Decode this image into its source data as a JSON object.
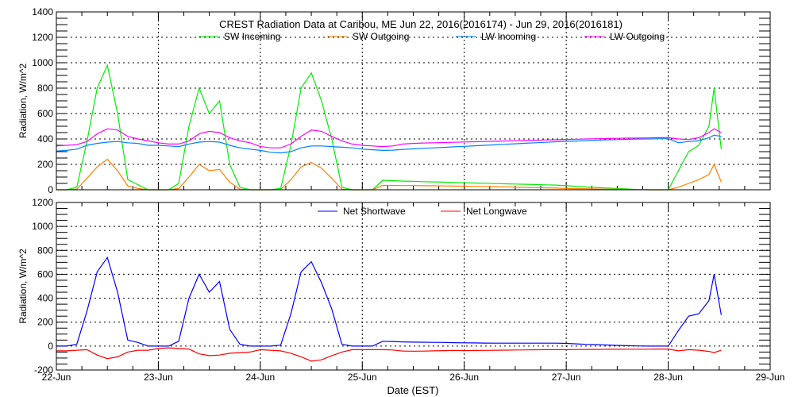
{
  "title": "CREST Radiation Data at Caribou, ME   Jun 22, 2016(2016174) - Jun 29, 2016(2016181)",
  "xlabel": "Date (EST)",
  "chart_data": [
    {
      "type": "line",
      "title": "CREST Radiation Data at Caribou, ME   Jun 22, 2016(2016174) - Jun 29, 2016(2016181)",
      "xlabel": "",
      "ylabel": "Radiation, W/m^2",
      "xlim": [
        0,
        7
      ],
      "ylim": [
        0,
        1400
      ],
      "yticks": [
        0,
        200,
        400,
        600,
        800,
        1000,
        1200,
        1400
      ],
      "grid": true,
      "legend": "top",
      "x_days": [
        0,
        0.1,
        0.2,
        0.3,
        0.4,
        0.5,
        0.6,
        0.7,
        0.8,
        0.9,
        1.0,
        1.1,
        1.2,
        1.3,
        1.4,
        1.5,
        1.6,
        1.7,
        1.8,
        1.9,
        2.0,
        2.1,
        2.2,
        2.3,
        2.4,
        2.5,
        2.6,
        2.7,
        2.8,
        2.9,
        3.0,
        3.1,
        3.2,
        3.3,
        3.4,
        3.5,
        3.6,
        3.7,
        3.8,
        3.9,
        4.0,
        4.1,
        4.2,
        4.3,
        4.4,
        4.5,
        4.6,
        4.7,
        4.8,
        4.9,
        5.0,
        5.1,
        5.2,
        5.3,
        5.4,
        5.5,
        5.6,
        5.7,
        5.8,
        5.9,
        6.0,
        6.1,
        6.2,
        6.3,
        6.4,
        6.45,
        6.52
      ],
      "series": [
        {
          "name": "SW Incoming",
          "color": "#00ee00",
          "values": [
            0,
            0,
            20,
            380,
            800,
            980,
            600,
            80,
            40,
            0,
            0,
            0,
            50,
            500,
            800,
            600,
            700,
            200,
            20,
            0,
            0,
            0,
            10,
            350,
            800,
            920,
            700,
            400,
            20,
            0,
            0,
            0,
            75,
            72,
            68,
            66,
            64,
            62,
            60,
            57,
            55,
            53,
            51,
            49,
            47,
            45,
            43,
            41,
            39,
            37,
            32,
            27,
            22,
            18,
            14,
            10,
            6,
            2,
            0,
            0,
            0,
            150,
            300,
            350,
            500,
            800,
            320
          ]
        },
        {
          "name": "SW Outgoing",
          "color": "#ff7f00",
          "values": [
            0,
            0,
            5,
            90,
            180,
            240,
            150,
            30,
            10,
            0,
            0,
            0,
            10,
            100,
            200,
            150,
            160,
            60,
            5,
            0,
            0,
            0,
            2,
            80,
            180,
            215,
            170,
            90,
            5,
            0,
            0,
            0,
            35,
            34,
            33,
            33,
            32,
            31,
            30,
            29,
            28,
            27,
            26,
            25,
            23,
            21,
            19,
            17,
            15,
            13,
            10,
            9,
            8,
            6,
            5,
            4,
            3,
            1,
            0,
            0,
            0,
            20,
            50,
            80,
            120,
            200,
            60
          ]
        },
        {
          "name": "LW Incoming",
          "color": "#0080ff",
          "values": [
            305,
            310,
            320,
            350,
            365,
            375,
            380,
            370,
            365,
            350,
            350,
            345,
            340,
            360,
            375,
            380,
            375,
            350,
            330,
            320,
            310,
            295,
            290,
            300,
            330,
            345,
            345,
            340,
            335,
            330,
            320,
            315,
            310,
            312,
            318,
            322,
            326,
            330,
            334,
            338,
            342,
            346,
            350,
            354,
            358,
            362,
            366,
            370,
            374,
            378,
            381,
            384,
            387,
            390,
            393,
            395,
            397,
            399,
            400,
            402,
            402,
            370,
            380,
            385,
            410,
            430,
            420
          ]
        },
        {
          "name": "LW Outgoing",
          "color": "#ff00ff",
          "values": [
            345,
            350,
            355,
            380,
            440,
            480,
            470,
            420,
            400,
            385,
            370,
            360,
            360,
            385,
            440,
            460,
            450,
            410,
            385,
            370,
            340,
            330,
            330,
            360,
            420,
            470,
            460,
            420,
            385,
            360,
            350,
            345,
            340,
            345,
            360,
            365,
            368,
            370,
            372,
            374,
            376,
            378,
            380,
            382,
            384,
            386,
            388,
            390,
            392,
            394,
            396,
            398,
            400,
            402,
            404,
            405,
            406,
            407,
            408,
            410,
            410,
            400,
            395,
            410,
            450,
            480,
            450
          ]
        }
      ]
    },
    {
      "type": "line",
      "xlabel": "Date (EST)",
      "ylabel": "Radiation, W/m^2",
      "xlim": [
        0,
        7
      ],
      "ylim": [
        -200,
        1200
      ],
      "yticks": [
        -200,
        0,
        200,
        400,
        600,
        800,
        1000,
        1200
      ],
      "xticks": [
        "22-Jun",
        "23-Jun",
        "24-Jun",
        "25-Jun",
        "26-Jun",
        "27-Jun",
        "28-Jun",
        "29-Jun"
      ],
      "grid": true,
      "legend": "top",
      "series": [
        {
          "name": "Net Shortwave",
          "color": "#0000ff",
          "values": [
            0,
            0,
            15,
            290,
            620,
            740,
            450,
            50,
            30,
            0,
            0,
            0,
            40,
            400,
            600,
            450,
            540,
            140,
            15,
            0,
            0,
            0,
            8,
            270,
            620,
            705,
            530,
            310,
            15,
            0,
            0,
            0,
            40,
            38,
            35,
            33,
            32,
            31,
            30,
            28,
            27,
            26,
            25,
            24,
            24,
            24,
            24,
            24,
            24,
            24,
            22,
            18,
            14,
            12,
            9,
            6,
            3,
            1,
            0,
            0,
            0,
            130,
            250,
            270,
            380,
            600,
            260
          ]
        },
        {
          "name": "Net Longwave",
          "color": "#ff0000",
          "values": [
            -40,
            -40,
            -35,
            -30,
            -75,
            -105,
            -90,
            -50,
            -35,
            -35,
            -20,
            -15,
            -20,
            -25,
            -65,
            -80,
            -75,
            -60,
            -55,
            -50,
            -30,
            -35,
            -40,
            -60,
            -90,
            -125,
            -115,
            -80,
            -50,
            -30,
            -30,
            -30,
            -30,
            -33,
            -42,
            -43,
            -42,
            -40,
            -38,
            -36,
            -38,
            -37,
            -36,
            -35,
            -34,
            -33,
            -32,
            -31,
            -30,
            -30,
            -30,
            -29,
            -28,
            -28,
            -27,
            -27,
            -26,
            -26,
            -26,
            -25,
            -25,
            -40,
            -30,
            -35,
            -45,
            -55,
            -35
          ]
        }
      ]
    }
  ]
}
